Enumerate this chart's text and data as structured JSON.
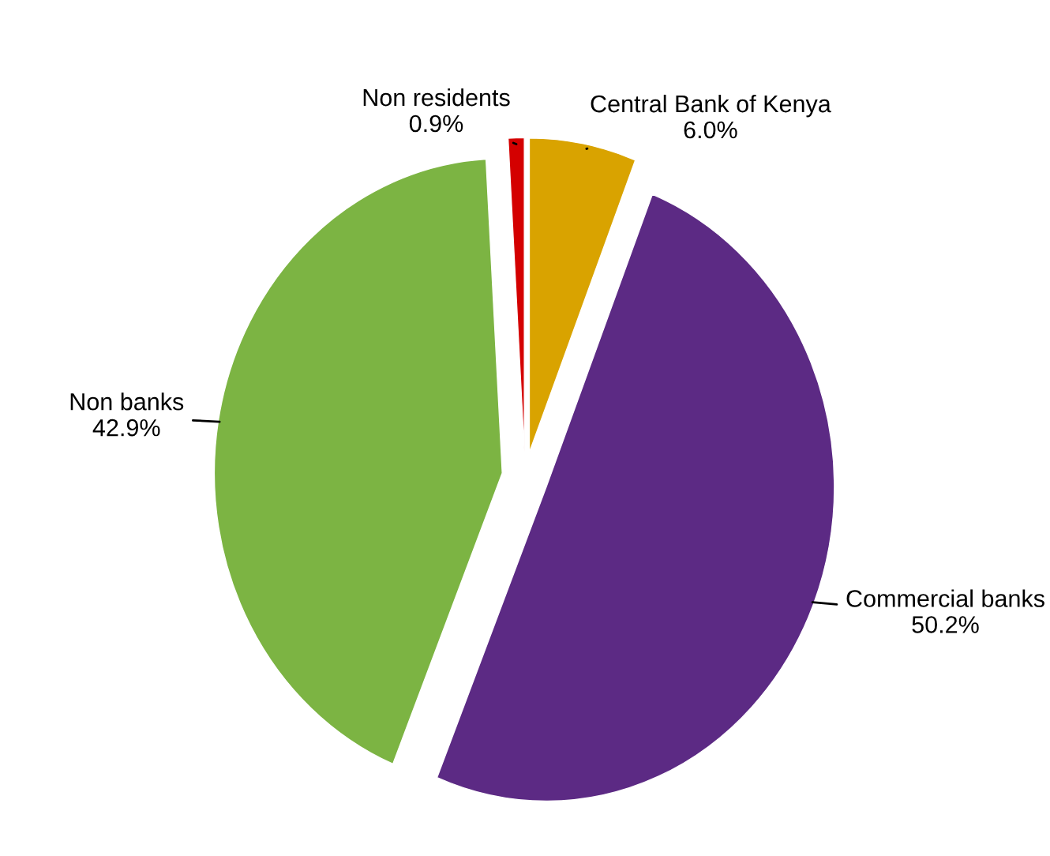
{
  "chart_data": {
    "type": "pie",
    "categories": [
      "Central Bank of Kenya",
      "Commercial banks",
      "Non banks",
      "Non residents"
    ],
    "values": [
      6.0,
      50.2,
      42.9,
      0.9
    ],
    "colors": [
      "#d9a300",
      "#5c2a84",
      "#7cb443",
      "#d40000"
    ],
    "value_labels": [
      "6.0%",
      "50.2%",
      "42.9%",
      "0.9%"
    ],
    "legend": false
  }
}
